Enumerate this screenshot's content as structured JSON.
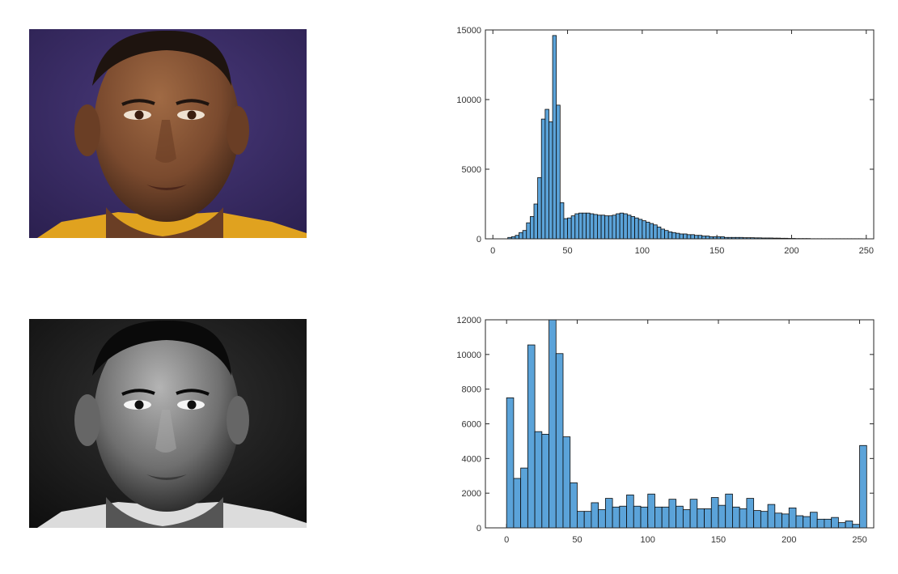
{
  "figure": {
    "bar_fill": "#5ba3d9",
    "bar_edge": "#0a0a0a",
    "axis_color": "#262626",
    "tick_text_color": "#333333"
  },
  "photos": [
    {
      "name": "original-color-portrait",
      "background": "#3b2b66",
      "skin": "#7a4a2e",
      "jersey": "#e0a21f"
    },
    {
      "name": "contrast-stretched-grayscale-portrait",
      "background": "#1c1c1c",
      "skin": "#6f6f6f",
      "jersey": "#dcdcdc"
    }
  ],
  "chart_data": [
    {
      "type": "bar",
      "title": "",
      "xlabel": "",
      "ylabel": "",
      "xlim": [
        -5,
        255
      ],
      "ylim": [
        0,
        15000
      ],
      "x_ticks": [
        0,
        50,
        100,
        150,
        200,
        250
      ],
      "y_ticks": [
        0,
        5000,
        10000,
        15000
      ],
      "bin_width": 2.5,
      "bin_start": 10,
      "values": [
        100,
        150,
        250,
        450,
        600,
        1150,
        1600,
        2500,
        4400,
        8600,
        9300,
        8400,
        14600,
        9600,
        2600,
        1450,
        1500,
        1650,
        1800,
        1850,
        1850,
        1850,
        1800,
        1750,
        1700,
        1700,
        1650,
        1650,
        1700,
        1800,
        1850,
        1800,
        1700,
        1600,
        1500,
        1400,
        1300,
        1200,
        1100,
        1000,
        850,
        700,
        600,
        500,
        450,
        400,
        350,
        350,
        300,
        300,
        250,
        250,
        200,
        200,
        150,
        150,
        150,
        150,
        100,
        100,
        100,
        100,
        100,
        80,
        80,
        80,
        70,
        70,
        60,
        60,
        60,
        50,
        50,
        40,
        40,
        30,
        30,
        20,
        20,
        20,
        20,
        10,
        10,
        10,
        10,
        10,
        10,
        10,
        10,
        10,
        10,
        10,
        10,
        10,
        10
      ]
    },
    {
      "type": "bar",
      "title": "",
      "xlabel": "",
      "ylabel": "",
      "xlim": [
        -15,
        260
      ],
      "ylim": [
        0,
        12000
      ],
      "x_ticks": [
        0,
        50,
        100,
        150,
        200,
        250
      ],
      "y_ticks": [
        0,
        2000,
        4000,
        6000,
        8000,
        10000,
        12000
      ],
      "bin_width": 5,
      "bin_start": 0,
      "values": [
        7500,
        2850,
        3450,
        10550,
        5550,
        5400,
        12000,
        10050,
        5250,
        2600,
        950,
        950,
        1450,
        1050,
        1700,
        1200,
        1250,
        1900,
        1250,
        1200,
        1950,
        1200,
        1200,
        1650,
        1250,
        1050,
        1650,
        1100,
        1100,
        1750,
        1300,
        1950,
        1200,
        1100,
        1700,
        1000,
        950,
        1350,
        850,
        800,
        1150,
        700,
        650,
        900,
        500,
        500,
        600,
        300,
        400,
        200,
        4750
      ]
    }
  ]
}
